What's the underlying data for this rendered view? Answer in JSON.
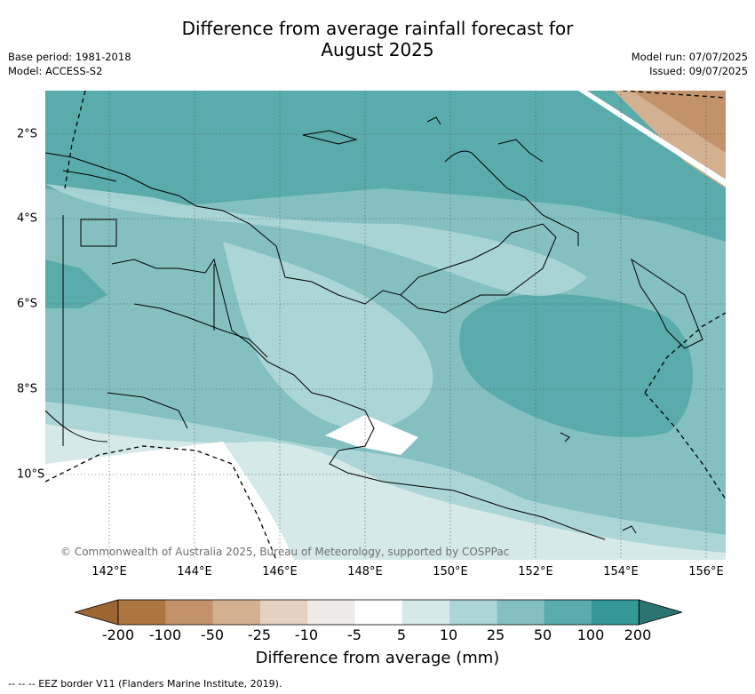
{
  "title": [
    "Difference from average rainfall forecast for",
    "August 2025"
  ],
  "meta_left": [
    "Base period: 1981-2018",
    "Model: ACCESS-S2"
  ],
  "meta_right": [
    "Model run: 07/07/2025",
    "Issued: 09/07/2025"
  ],
  "credit": "© Commonwealth of Australia 2025, Bureau of Meteorology, supported by COSPPac",
  "lon_labels": [
    "142°E",
    "144°E",
    "146°E",
    "148°E",
    "150°E",
    "152°E",
    "154°E",
    "156°E"
  ],
  "lat_labels": [
    "2°S",
    "4°S",
    "6°S",
    "8°S",
    "10°S"
  ],
  "colorbar": {
    "title": "Difference from average (mm)",
    "labels": [
      "-200",
      "-100",
      "-50",
      "-25",
      "-10",
      "-5",
      "5",
      "10",
      "25",
      "50",
      "100",
      "200"
    ],
    "colors": [
      "#9c6531",
      "#ad7540",
      "#c2926a",
      "#d3b090",
      "#e6d1c0",
      "#efebe8",
      "#ffffff",
      "#d5e9e8",
      "#acd6d6",
      "#84c0c0",
      "#5aabab",
      "#339896",
      "#2b7470"
    ]
  },
  "footer": "--  --  -- EEZ border V11 (Flanders Marine Institute, 2019)."
}
